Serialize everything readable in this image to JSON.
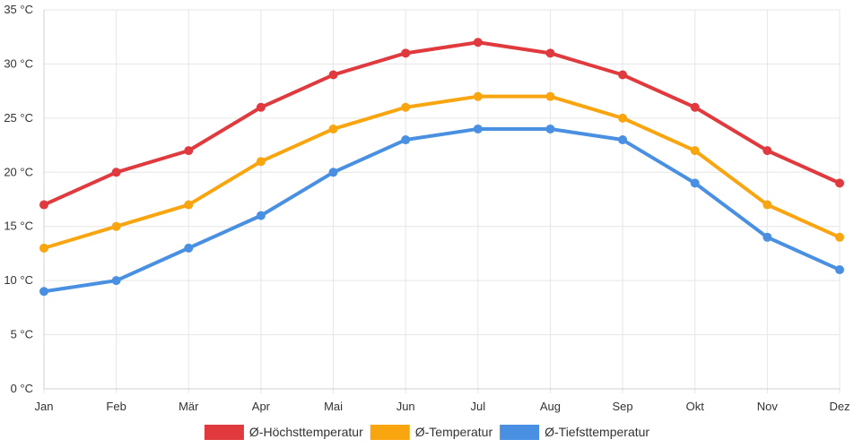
{
  "chart_data": {
    "type": "line",
    "categories": [
      "Jan",
      "Feb",
      "Mär",
      "Apr",
      "Mai",
      "Jun",
      "Jul",
      "Aug",
      "Sep",
      "Okt",
      "Nov",
      "Dez"
    ],
    "series": [
      {
        "name": "Ø-Höchsttemperatur",
        "color": "#e0393e",
        "values": [
          17,
          20,
          22,
          26,
          29,
          31,
          32,
          31,
          29,
          26,
          22,
          19
        ]
      },
      {
        "name": "Ø-Temperatur",
        "color": "#f9a50f",
        "values": [
          13,
          15,
          17,
          21,
          24,
          26,
          27,
          27,
          25,
          22,
          17,
          14
        ]
      },
      {
        "name": "Ø-Tiefsttemperatur",
        "color": "#4a90e2",
        "values": [
          9,
          10,
          13,
          16,
          20,
          23,
          24,
          24,
          23,
          19,
          14,
          11
        ]
      }
    ],
    "ylim": [
      0,
      35
    ],
    "yticks": [
      0,
      5,
      10,
      15,
      20,
      25,
      30,
      35
    ],
    "ytick_labels": [
      "0 °C",
      "5 °C",
      "10 °C",
      "15 °C",
      "20 °C",
      "25 °C",
      "30 °C",
      "35 °C"
    ],
    "legend_position": "bottom",
    "grid": true
  }
}
